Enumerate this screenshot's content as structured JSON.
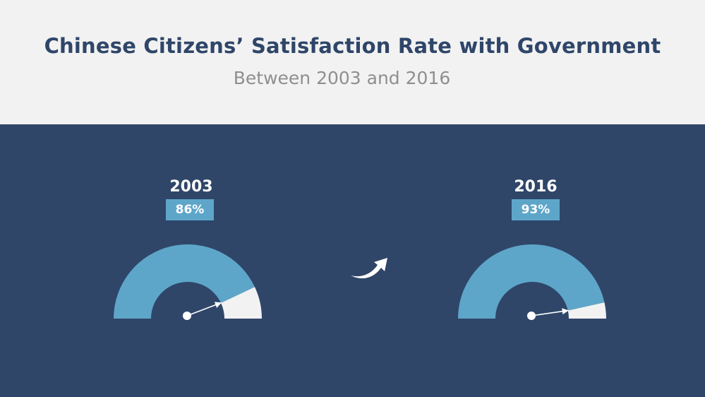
{
  "header": {
    "title": "Chinese Citizens’ Satisfaction Rate with Government",
    "subtitle": "Between 2003 and 2016"
  },
  "colors": {
    "background": "#2f4669",
    "header_background": "#f2f2f2",
    "filled": "#5ea6c9",
    "remaining": "#f2f2f2",
    "title": "#2f4669",
    "subtitle": "#8f8f8f"
  },
  "icons": {
    "trend": "curved-up-arrow-icon"
  },
  "chart_data": [
    {
      "type": "gauge",
      "label": "2003",
      "value_label": "86%",
      "value": 86,
      "range": [
        0,
        100
      ]
    },
    {
      "type": "gauge",
      "label": "2016",
      "value_label": "93%",
      "value": 93,
      "range": [
        0,
        100
      ]
    }
  ]
}
